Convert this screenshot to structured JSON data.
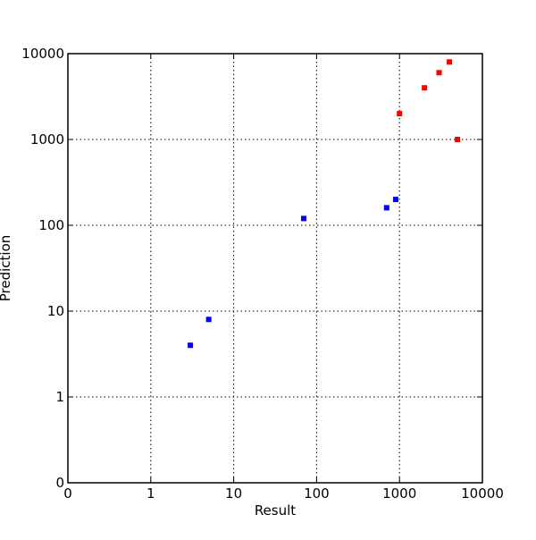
{
  "chart_data": {
    "type": "scatter",
    "title": "",
    "xlabel": "Result",
    "ylabel": "Prediction",
    "x_scale": "symlog",
    "y_scale": "symlog",
    "xlim": [
      0,
      10000
    ],
    "ylim": [
      0,
      10000
    ],
    "grid": true,
    "x_ticks": [
      0,
      1,
      10,
      100,
      1000,
      10000
    ],
    "x_tick_labels": [
      "0",
      "1",
      "10",
      "100",
      "1000",
      "10000"
    ],
    "y_ticks": [
      0,
      1,
      10,
      100,
      1000,
      10000
    ],
    "y_tick_labels": [
      "0",
      "1",
      "10",
      "100",
      "1000",
      "10000"
    ],
    "series": [
      {
        "color": "#0000ff",
        "marker": "square",
        "points": [
          {
            "x": 3,
            "y": 4
          },
          {
            "x": 5,
            "y": 8
          },
          {
            "x": 70,
            "y": 120
          },
          {
            "x": 700,
            "y": 160
          },
          {
            "x": 900,
            "y": 200
          }
        ]
      },
      {
        "color": "#ff0000",
        "marker": "square",
        "points": [
          {
            "x": 1000,
            "y": 2000
          },
          {
            "x": 2000,
            "y": 4000
          },
          {
            "x": 3000,
            "y": 6000
          },
          {
            "x": 4000,
            "y": 8000
          },
          {
            "x": 5000,
            "y": 1000
          }
        ]
      }
    ]
  }
}
